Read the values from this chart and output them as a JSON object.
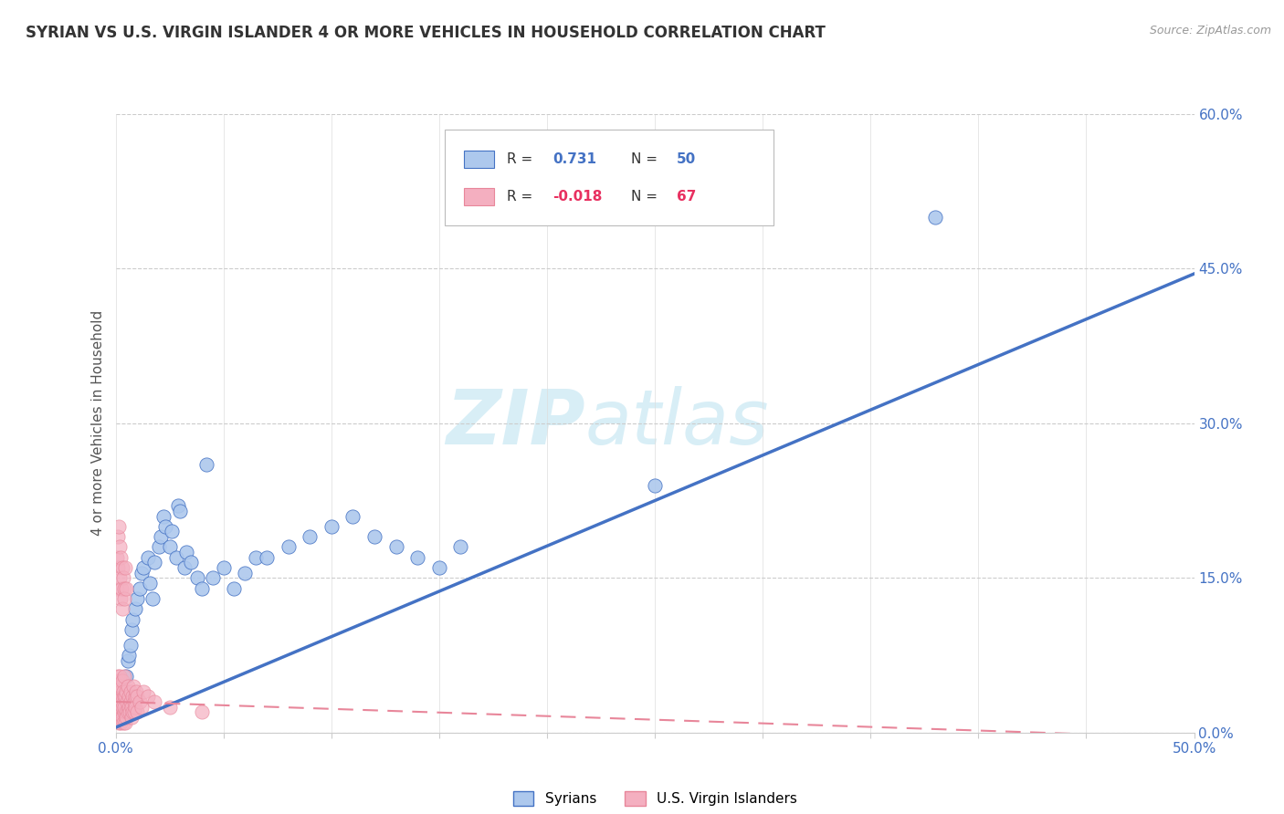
{
  "title": "SYRIAN VS U.S. VIRGIN ISLANDER 4 OR MORE VEHICLES IN HOUSEHOLD CORRELATION CHART",
  "source": "Source: ZipAtlas.com",
  "ylabel": "4 or more Vehicles in Household",
  "xlim": [
    0.0,
    50.0
  ],
  "ylim": [
    0.0,
    60.0
  ],
  "yticks": [
    0.0,
    15.0,
    30.0,
    45.0,
    60.0
  ],
  "xticks": [
    0.0,
    5.0,
    10.0,
    15.0,
    20.0,
    25.0,
    30.0,
    35.0,
    40.0,
    45.0,
    50.0
  ],
  "syrian_R": 0.731,
  "syrian_N": 50,
  "virgin_R": -0.018,
  "virgin_N": 67,
  "syrian_color": "#adc8ed",
  "virgin_color": "#f4afc0",
  "syrian_line_color": "#4472c4",
  "virgin_line_color": "#e8869a",
  "syrian_line_x": [
    0.0,
    50.0
  ],
  "syrian_line_y": [
    0.5,
    44.5
  ],
  "virgin_line_x": [
    0.0,
    50.0
  ],
  "virgin_line_y": [
    3.0,
    -0.5
  ],
  "syrian_scatter_x": [
    0.3,
    0.4,
    0.5,
    0.55,
    0.6,
    0.7,
    0.75,
    0.8,
    0.9,
    1.0,
    1.1,
    1.2,
    1.3,
    1.5,
    1.6,
    1.7,
    1.8,
    2.0,
    2.1,
    2.2,
    2.3,
    2.5,
    2.6,
    2.8,
    2.9,
    3.0,
    3.2,
    3.3,
    3.5,
    3.8,
    4.0,
    4.2,
    4.5,
    5.0,
    5.5,
    6.0,
    6.5,
    7.0,
    8.0,
    9.0,
    10.0,
    11.0,
    12.0,
    13.0,
    14.0,
    15.0,
    16.0,
    25.0,
    38.0,
    0.2
  ],
  "syrian_scatter_y": [
    3.0,
    4.0,
    5.5,
    7.0,
    7.5,
    8.5,
    10.0,
    11.0,
    12.0,
    13.0,
    14.0,
    15.5,
    16.0,
    17.0,
    14.5,
    13.0,
    16.5,
    18.0,
    19.0,
    21.0,
    20.0,
    18.0,
    19.5,
    17.0,
    22.0,
    21.5,
    16.0,
    17.5,
    16.5,
    15.0,
    14.0,
    26.0,
    15.0,
    16.0,
    14.0,
    15.5,
    17.0,
    17.0,
    18.0,
    19.0,
    20.0,
    21.0,
    19.0,
    18.0,
    17.0,
    16.0,
    18.0,
    24.0,
    50.0,
    2.0
  ],
  "virgin_scatter_x": [
    0.05,
    0.05,
    0.07,
    0.08,
    0.08,
    0.1,
    0.1,
    0.1,
    0.12,
    0.12,
    0.13,
    0.15,
    0.15,
    0.15,
    0.17,
    0.18,
    0.2,
    0.2,
    0.2,
    0.22,
    0.22,
    0.25,
    0.25,
    0.25,
    0.28,
    0.3,
    0.3,
    0.3,
    0.32,
    0.35,
    0.35,
    0.38,
    0.4,
    0.4,
    0.42,
    0.45,
    0.45,
    0.48,
    0.5,
    0.5,
    0.52,
    0.55,
    0.58,
    0.6,
    0.62,
    0.65,
    0.68,
    0.7,
    0.72,
    0.75,
    0.78,
    0.8,
    0.82,
    0.85,
    0.88,
    0.9,
    0.92,
    0.95,
    0.98,
    1.0,
    1.1,
    1.2,
    1.3,
    1.5,
    1.8,
    2.5,
    4.0
  ],
  "virgin_scatter_y": [
    2.0,
    3.5,
    4.0,
    2.5,
    5.0,
    1.5,
    3.0,
    4.5,
    2.0,
    5.5,
    3.5,
    1.0,
    2.5,
    4.0,
    3.0,
    5.0,
    1.5,
    3.0,
    5.5,
    2.0,
    4.0,
    1.0,
    2.5,
    4.5,
    3.0,
    1.5,
    3.5,
    5.0,
    2.5,
    1.0,
    4.0,
    2.0,
    3.5,
    5.5,
    2.5,
    1.0,
    3.5,
    2.0,
    1.5,
    4.0,
    3.0,
    2.0,
    4.5,
    2.5,
    3.5,
    2.0,
    4.0,
    3.0,
    2.5,
    1.5,
    3.5,
    2.0,
    4.5,
    3.0,
    2.0,
    3.5,
    2.5,
    4.0,
    2.0,
    3.5,
    3.0,
    2.5,
    4.0,
    3.5,
    3.0,
    2.5,
    2.0
  ],
  "extra_virgin_x": [
    0.05,
    0.08,
    0.1,
    0.12,
    0.15,
    0.18,
    0.2,
    0.22,
    0.25,
    0.28,
    0.3,
    0.32,
    0.35,
    0.38,
    0.4,
    0.45,
    0.5
  ],
  "extra_virgin_y": [
    17.0,
    14.0,
    19.0,
    16.0,
    20.0,
    15.0,
    18.0,
    13.0,
    17.0,
    14.0,
    16.0,
    12.0,
    15.0,
    14.0,
    13.0,
    16.0,
    14.0
  ]
}
